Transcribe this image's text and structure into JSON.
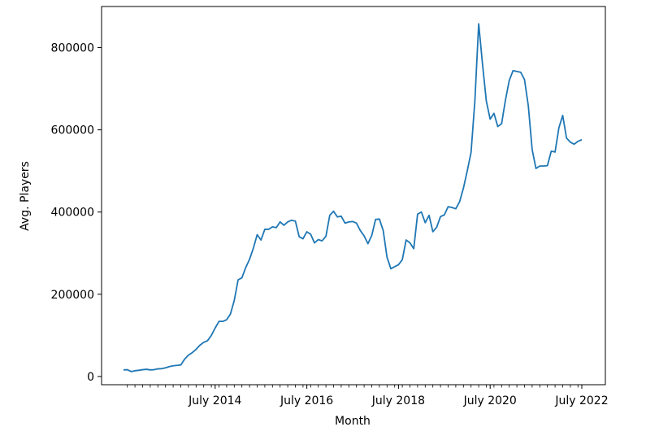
{
  "chart_data": {
    "type": "line",
    "title": "",
    "xlabel": "Month",
    "ylabel": "Avg. Players",
    "x_tick_labels": [
      "July 2014",
      "July 2016",
      "July 2018",
      "July 2020",
      "July 2022"
    ],
    "y_tick_labels": [
      "0",
      "200000",
      "400000",
      "600000",
      "800000"
    ],
    "ylim": [
      -20000,
      900000
    ],
    "grid": false,
    "legend": "none",
    "color": "#1f77b4",
    "series": [
      {
        "x_start": "2012-07",
        "x_end": "2022-09",
        "frequency": "monthly",
        "values": [
          16000,
          16500,
          12000,
          14000,
          15000,
          16500,
          17500,
          16000,
          16500,
          18500,
          19000,
          21000,
          24000,
          26000,
          27000,
          28000,
          42000,
          52000,
          58000,
          66000,
          76000,
          83000,
          87000,
          100000,
          118000,
          134000,
          134000,
          138000,
          152000,
          185000,
          235000,
          240000,
          265000,
          285000,
          312000,
          345000,
          332000,
          358000,
          358000,
          364000,
          362000,
          376000,
          368000,
          376000,
          380000,
          378000,
          340000,
          335000,
          352000,
          346000,
          325000,
          333000,
          330000,
          341000,
          392000,
          402000,
          388000,
          390000,
          373000,
          376000,
          377000,
          373000,
          355000,
          342000,
          323000,
          343000,
          382000,
          383000,
          355000,
          290000,
          262000,
          267000,
          272000,
          284000,
          332000,
          325000,
          311000,
          395000,
          400000,
          374000,
          392000,
          352000,
          363000,
          389000,
          393000,
          413000,
          411000,
          408000,
          425000,
          458000,
          500000,
          545000,
          670000,
          858000,
          760000,
          670000,
          626000,
          640000,
          608000,
          615000,
          672000,
          720000,
          744000,
          742000,
          740000,
          722000,
          658000,
          552000,
          506000,
          512000,
          512000,
          513000,
          548000,
          546000,
          605000,
          635000,
          580000,
          570000,
          565000,
          572000,
          576000
        ]
      }
    ]
  }
}
